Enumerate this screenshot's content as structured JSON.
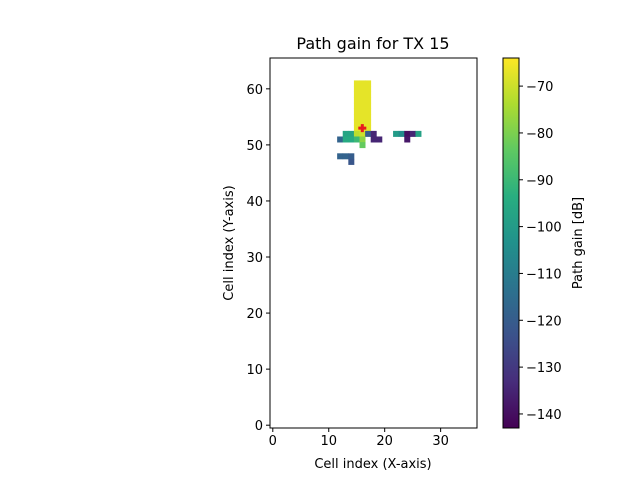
{
  "chart_data": {
    "type": "heatmap",
    "title": "Path gain for TX 15",
    "xlabel": "Cell index (X-axis)",
    "ylabel": "Cell index (Y-axis)",
    "colorbar_label": "Path gain [dB]",
    "colormap": "viridis",
    "xlim": [
      -0.5,
      36.5
    ],
    "ylim": [
      -0.5,
      65.5
    ],
    "xticks": [
      0,
      10,
      20,
      30
    ],
    "yticks": [
      0,
      10,
      20,
      30,
      40,
      50,
      60
    ],
    "clim": [
      -143,
      -64
    ],
    "colorbar_ticks": [
      -70,
      -80,
      -90,
      -100,
      -110,
      -120,
      -130,
      -140
    ],
    "grid": false,
    "transmitter": {
      "x": 16,
      "y": 53,
      "marker": "plus",
      "color": "#e8191d"
    },
    "cells": [
      {
        "x": 15,
        "y": 61,
        "v": -67
      },
      {
        "x": 16,
        "y": 61,
        "v": -67
      },
      {
        "x": 17,
        "y": 61,
        "v": -67
      },
      {
        "x": 15,
        "y": 60,
        "v": -67
      },
      {
        "x": 16,
        "y": 60,
        "v": -67
      },
      {
        "x": 17,
        "y": 60,
        "v": -67
      },
      {
        "x": 15,
        "y": 59,
        "v": -67
      },
      {
        "x": 16,
        "y": 59,
        "v": -67
      },
      {
        "x": 17,
        "y": 59,
        "v": -67
      },
      {
        "x": 15,
        "y": 58,
        "v": -67
      },
      {
        "x": 16,
        "y": 58,
        "v": -67
      },
      {
        "x": 17,
        "y": 58,
        "v": -67
      },
      {
        "x": 15,
        "y": 57,
        "v": -67
      },
      {
        "x": 16,
        "y": 57,
        "v": -67
      },
      {
        "x": 17,
        "y": 57,
        "v": -67
      },
      {
        "x": 15,
        "y": 56,
        "v": -67
      },
      {
        "x": 16,
        "y": 56,
        "v": -67
      },
      {
        "x": 17,
        "y": 56,
        "v": -67
      },
      {
        "x": 15,
        "y": 55,
        "v": -67
      },
      {
        "x": 16,
        "y": 55,
        "v": -67
      },
      {
        "x": 17,
        "y": 55,
        "v": -67
      },
      {
        "x": 15,
        "y": 54,
        "v": -67
      },
      {
        "x": 16,
        "y": 54,
        "v": -67
      },
      {
        "x": 17,
        "y": 54,
        "v": -67
      },
      {
        "x": 15,
        "y": 53,
        "v": -67
      },
      {
        "x": 16,
        "y": 53,
        "v": -67
      },
      {
        "x": 17,
        "y": 53,
        "v": -67
      },
      {
        "x": 13,
        "y": 52,
        "v": -97
      },
      {
        "x": 14,
        "y": 52,
        "v": -97
      },
      {
        "x": 15,
        "y": 52,
        "v": -72
      },
      {
        "x": 16,
        "y": 52,
        "v": -70
      },
      {
        "x": 17,
        "y": 52,
        "v": -120
      },
      {
        "x": 18,
        "y": 52,
        "v": -135
      },
      {
        "x": 12,
        "y": 51,
        "v": -118
      },
      {
        "x": 13,
        "y": 51,
        "v": -95
      },
      {
        "x": 14,
        "y": 51,
        "v": -95
      },
      {
        "x": 15,
        "y": 51,
        "v": -90
      },
      {
        "x": 16,
        "y": 51,
        "v": -78
      },
      {
        "x": 18,
        "y": 51,
        "v": -135
      },
      {
        "x": 19,
        "y": 51,
        "v": -135
      },
      {
        "x": 16,
        "y": 50,
        "v": -83
      },
      {
        "x": 12,
        "y": 48,
        "v": -118
      },
      {
        "x": 13,
        "y": 48,
        "v": -118
      },
      {
        "x": 14,
        "y": 48,
        "v": -120
      },
      {
        "x": 14,
        "y": 47,
        "v": -122
      },
      {
        "x": 22,
        "y": 52,
        "v": -100
      },
      {
        "x": 23,
        "y": 52,
        "v": -105
      },
      {
        "x": 24,
        "y": 52,
        "v": -140
      },
      {
        "x": 25,
        "y": 52,
        "v": -135
      },
      {
        "x": 26,
        "y": 52,
        "v": -98
      },
      {
        "x": 24,
        "y": 51,
        "v": -138
      }
    ]
  }
}
